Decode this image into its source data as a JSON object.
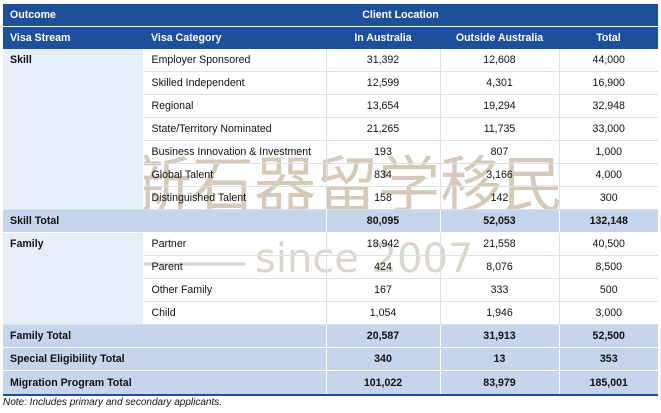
{
  "header": {
    "outcome": "Outcome",
    "client_location": "Client Location",
    "visa_stream": "Visa Stream",
    "visa_category": "Visa Category",
    "in_australia": "In Australia",
    "outside_australia": "Outside Australia",
    "total": "Total"
  },
  "rows": [
    {
      "stream": "Skill",
      "category": "Employer Sponsored",
      "in": "31,392",
      "out": "12,608",
      "total": "44,000"
    },
    {
      "stream": "",
      "category": "Skilled Independent",
      "in": "12,599",
      "out": "4,301",
      "total": "16,900"
    },
    {
      "stream": "",
      "category": "Regional",
      "in": "13,654",
      "out": "19,294",
      "total": "32,948"
    },
    {
      "stream": "",
      "category": "State/Territory Nominated",
      "in": "21,265",
      "out": "11,735",
      "total": "33,000"
    },
    {
      "stream": "",
      "category": "Business Innovation & Investment",
      "in": "193",
      "out": "807",
      "total": "1,000"
    },
    {
      "stream": "",
      "category": "Global Talent",
      "in": "834",
      "out": "3,166",
      "total": "4,000"
    },
    {
      "stream": "",
      "category": "Distinguished Talent",
      "in": "158",
      "out": "142",
      "total": "300"
    },
    {
      "stream": "Family",
      "category": "Partner",
      "in": "18,942",
      "out": "21,558",
      "total": "40,500"
    },
    {
      "stream": "",
      "category": "Parent",
      "in": "424",
      "out": "8,076",
      "total": "8,500"
    },
    {
      "stream": "",
      "category": "Other Family",
      "in": "167",
      "out": "333",
      "total": "500"
    },
    {
      "stream": "",
      "category": "Child",
      "in": "1,054",
      "out": "1,946",
      "total": "3,000"
    }
  ],
  "skill_total": {
    "label": "Skill Total",
    "in": "80,095",
    "out": "52,053",
    "total": "132,148"
  },
  "family_total": {
    "label": "Family Total",
    "in": "20,587",
    "out": "31,913",
    "total": "52,500"
  },
  "special_total": {
    "label": "Special Eligibility Total",
    "in": "340",
    "out": "13",
    "total": "353"
  },
  "program_total": {
    "label": "Migration Program Total",
    "in": "101,022",
    "out": "83,979",
    "total": "185,001"
  },
  "note": "Note: Includes primary and secondary applicants.",
  "watermark": {
    "script": "新石器留学移民",
    "text": "since 2007"
  },
  "colors": {
    "header_bg": "#1d4f9a",
    "total_bg": "#c5d6ec",
    "stream_bg": "#e7eef7"
  }
}
